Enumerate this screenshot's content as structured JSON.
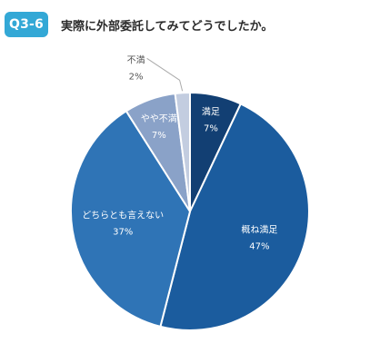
{
  "header": {
    "badge": "Q3-6",
    "title": "実際に外部委託してみてどうでしたか。"
  },
  "colors": {
    "badge_bg": "#33a8d6",
    "slice_border": "#ffffff",
    "outside_label": "#555555",
    "leader_line": "#aaaaaa"
  },
  "chart_data": {
    "type": "pie",
    "title": "実際に外部委託してみてどうでしたか。",
    "unit": "%",
    "start": "12 o'clock, clockwise",
    "slices": [
      {
        "label": "満足",
        "value": 7,
        "display": "7%",
        "color": "#123f73",
        "label_color": "#ffffff",
        "label_position": "inside"
      },
      {
        "label": "概ね満足",
        "value": 47,
        "display": "47%",
        "color": "#1b5c9e",
        "label_color": "#ffffff",
        "label_position": "inside"
      },
      {
        "label": "どちらとも言えない",
        "value": 37,
        "display": "37%",
        "color": "#2f74b6",
        "label_color": "#ffffff",
        "label_position": "inside"
      },
      {
        "label": "やや不満",
        "value": 7,
        "display": "7%",
        "color": "#8aa2c8",
        "label_color": "#ffffff",
        "label_position": "inside"
      },
      {
        "label": "不満",
        "value": 2,
        "display": "2%",
        "color": "#c3cde0",
        "label_color": "#555555",
        "label_position": "outside"
      }
    ]
  }
}
